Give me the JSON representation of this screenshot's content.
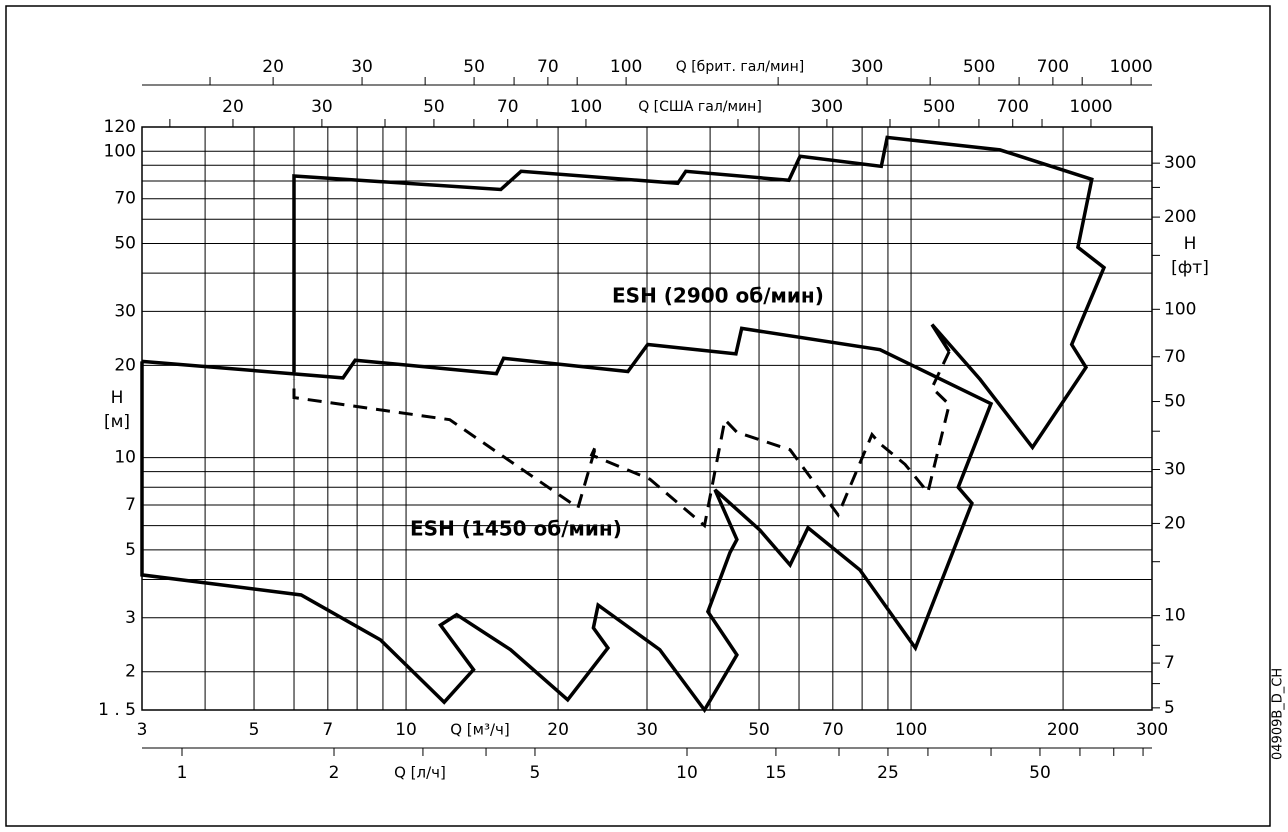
{
  "chart_data": {
    "type": "line",
    "log_x": true,
    "log_y": true,
    "grid": true,
    "xlabel": "Q [м³/ч]",
    "ylabel": [
      "H",
      "[м]"
    ],
    "xlim": [
      3,
      300
    ],
    "xticks": [
      3,
      5,
      7,
      10,
      20,
      30,
      50,
      70,
      100,
      200,
      300
    ],
    "xminor": [
      4,
      6,
      8,
      9,
      40,
      60,
      80,
      90
    ],
    "ylim": [
      1.5,
      120
    ],
    "yticks": [
      {
        "value": 1.5,
        "label": "1 . 5"
      },
      2,
      3,
      5,
      7,
      10,
      20,
      30,
      50,
      70,
      100,
      120
    ],
    "yminor": [
      4,
      6,
      8,
      9,
      40,
      60,
      80,
      90
    ],
    "top_axis_1": {
      "label": "Q [брит. гал/мин]",
      "lim": [
        11.0,
        1099.9
      ],
      "ticks": [
        20,
        30,
        50,
        70,
        100,
        300,
        500,
        700,
        1000
      ],
      "minor": [
        15,
        40,
        60,
        80,
        200,
        400,
        600,
        800
      ]
    },
    "top_axis_2": {
      "label": "Q [США гал/мин]",
      "lim": [
        13.21,
        1320.9
      ],
      "ticks": [
        20,
        30,
        50,
        70,
        100,
        300,
        500,
        700,
        1000
      ],
      "minor": [
        15,
        40,
        60,
        80,
        200,
        400,
        600,
        800
      ]
    },
    "bottom_axis_2": {
      "label": "Q [л/ч]",
      "lim": [
        0.8333,
        83.333
      ],
      "ticks": [
        1,
        2,
        5,
        10,
        15,
        25,
        50
      ],
      "minor": [
        3,
        4,
        20,
        30,
        40,
        60,
        70,
        80
      ]
    },
    "right_axis": {
      "label": [
        "H",
        "[фт]"
      ],
      "lim": [
        4.92,
        393.7
      ],
      "ticks": [
        5,
        7,
        10,
        20,
        30,
        50,
        70,
        100,
        200,
        300
      ],
      "minor": [
        6,
        8,
        15,
        40,
        150,
        250
      ]
    },
    "annotations": [
      "ESH (2900 об/мин)",
      "ESH (1450 об/мин)"
    ],
    "code": "04909B_D_CH",
    "color": "#000000",
    "series": [
      {
        "x": [
          6,
          6,
          15.4,
          16.9,
          34.5,
          35.8,
          57.3,
          60.3,
          87.3,
          89.7,
          150,
          228,
          214,
          241,
          208,
          222,
          174,
          137,
          110,
          119
        ],
        "values": [
          19,
          83,
          75,
          86,
          78.6,
          86,
          80.4,
          96.3,
          89.3,
          111,
          101,
          81,
          48.6,
          41.7,
          23.4,
          19.7,
          10.8,
          18.0,
          27.2,
          22.2
        ]
      },
      {
        "dash": true,
        "x": [
          119,
          110,
          119,
          108,
          97.3,
          86.8,
          83.7,
          71.7,
          57.6,
          45.2,
          42.8,
          39,
          30.4,
          23.3,
          23.8,
          21.9,
          12.2,
          6,
          6
        ],
        "values": [
          22.2,
          16.9,
          14.9,
          7.7,
          9.5,
          11.1,
          11.9,
          6.5,
          10.6,
          12.1,
          13.3,
          6.0,
          8.5,
          10.2,
          11.0,
          6.86,
          13.3,
          15.7,
          18
        ]
      },
      {
        "x": [
          3,
          7.5,
          7.93,
          15.1,
          15.6,
          27.5,
          30.1,
          45,
          46.2,
          86.8,
          144,
          124,
          132,
          102,
          79.2,
          62.5,
          57.6,
          50.2,
          40.9,
          45.2,
          43.8,
          39.6,
          45.2,
          39,
          31.8,
          24,
          23.5,
          25.1,
          20.9,
          16.1,
          12.6,
          11.7,
          13.6,
          11.9,
          8.9,
          6.2,
          3,
          3
        ],
        "values": [
          20.6,
          18.2,
          20.8,
          18.8,
          21.1,
          19.1,
          23.4,
          21.8,
          26.4,
          22.5,
          15,
          8.0,
          7.1,
          2.39,
          4.3,
          5.9,
          4.46,
          5.8,
          7.85,
          5.4,
          4.9,
          3.14,
          2.27,
          1.5,
          2.36,
          3.3,
          2.78,
          2.39,
          1.62,
          2.36,
          3.07,
          2.84,
          2.03,
          1.59,
          2.54,
          3.56,
          4.14,
          20.6
        ]
      }
    ]
  }
}
